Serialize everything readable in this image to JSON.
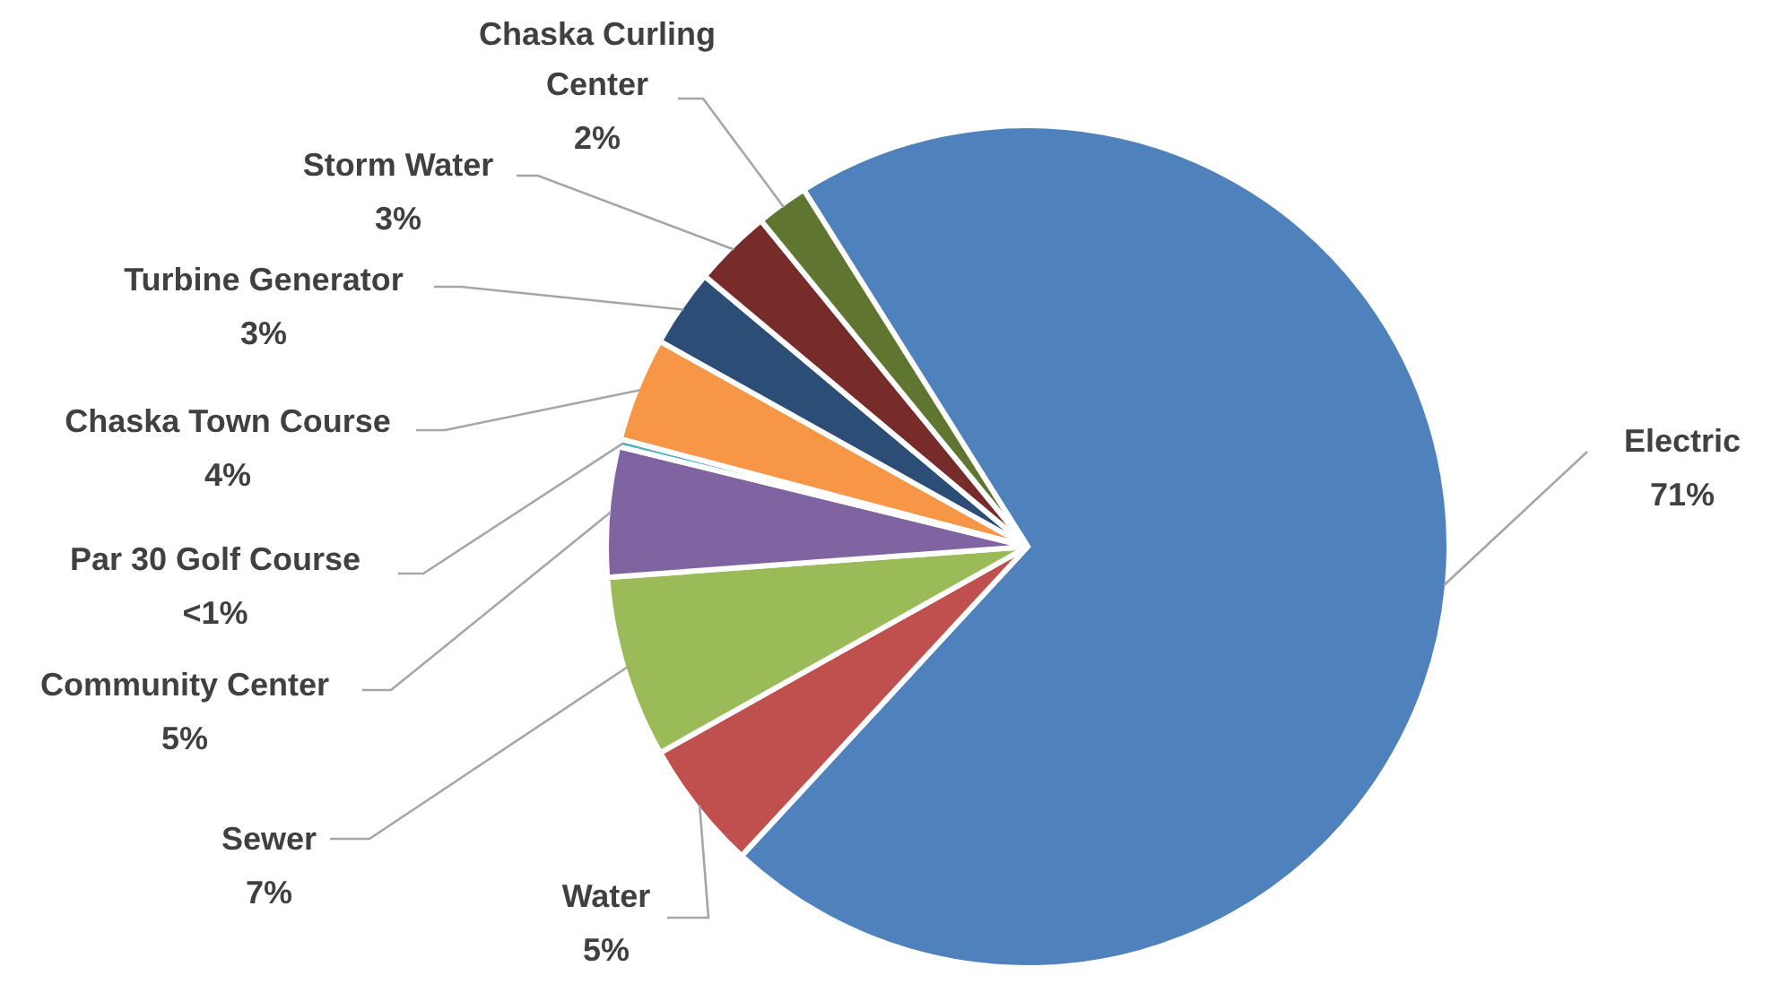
{
  "chart_data": {
    "type": "pie",
    "categories": [
      "Electric",
      "Water",
      "Sewer",
      "Community Center",
      "Par 30 Golf Course",
      "Chaska Town Course",
      "Turbine Generator",
      "Storm Water",
      "Chaska Curling Center"
    ],
    "values": [
      71,
      5,
      7,
      5,
      0.3,
      4,
      3,
      3,
      2
    ],
    "value_labels": [
      "71%",
      "5%",
      "7%",
      "5%",
      "<1%",
      "4%",
      "3%",
      "3%",
      "2%"
    ],
    "colors": [
      "#4f81bd",
      "#c0504d",
      "#9bbb59",
      "#8064a2",
      "#4bacc6",
      "#f79646",
      "#2c4d75",
      "#772c2a",
      "#5f7530"
    ]
  }
}
